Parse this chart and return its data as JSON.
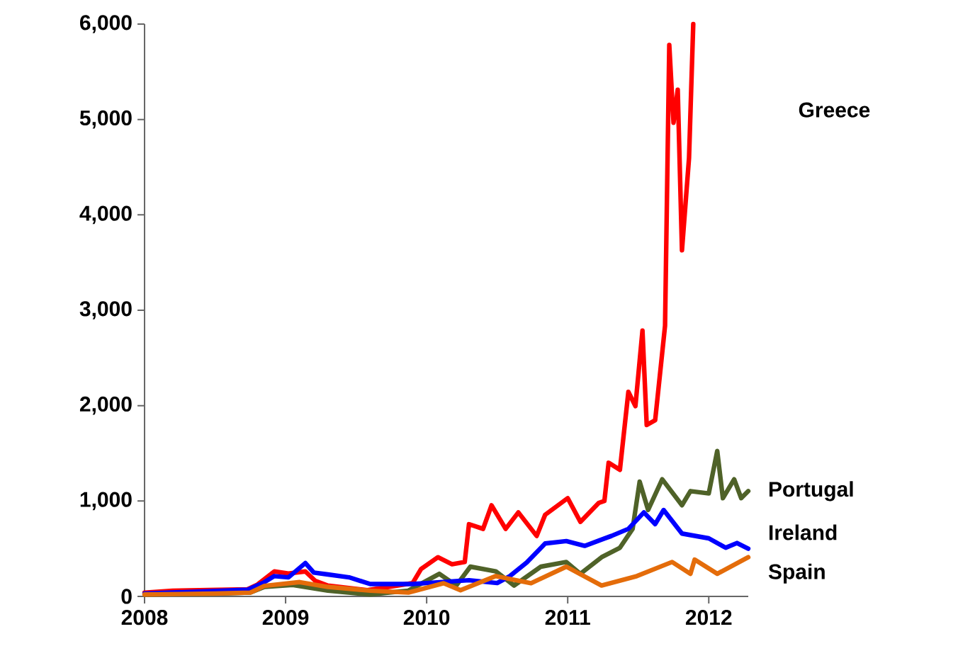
{
  "chart_data": {
    "type": "line",
    "xlim": [
      2008,
      2012.28
    ],
    "xticks": [
      2008,
      2009,
      2010,
      2011,
      2012
    ],
    "ylim": [
      0,
      6000
    ],
    "yticks": [
      0,
      {
        "value": 1000,
        "label": "1,000"
      },
      {
        "value": 2000,
        "label": "2,000"
      },
      {
        "value": 3000,
        "label": "3,000"
      },
      {
        "value": 4000,
        "label": "4,000"
      },
      {
        "value": 5000,
        "label": "5,000"
      },
      {
        "value": 6000,
        "label": "6,000"
      }
    ],
    "series": [
      {
        "name": "Greece",
        "color": "#ff0000",
        "x": [
          2008.0,
          2008.2,
          2008.73,
          2008.8,
          2008.92,
          2009.02,
          2009.14,
          2009.21,
          2009.3,
          2009.58,
          2009.9,
          2009.96,
          2010.08,
          2010.18,
          2010.27,
          2010.3,
          2010.4,
          2010.46,
          2010.56,
          2010.65,
          2010.78,
          2010.84,
          2011.0,
          2011.09,
          2011.22,
          2011.26,
          2011.29,
          2011.37,
          2011.43,
          2011.48,
          2011.53,
          2011.56,
          2011.62,
          2011.69,
          2011.72,
          2011.75,
          2011.78,
          2011.81,
          2011.86,
          2011.89
        ],
        "values": [
          40,
          60,
          75,
          124,
          262,
          240,
          262,
          163,
          114,
          65,
          139,
          287,
          411,
          337,
          361,
          757,
          708,
          955,
          708,
          881,
          634,
          856,
          1030,
          782,
          980,
          1000,
          1401,
          1327,
          2144,
          1995,
          2787,
          1797,
          1847,
          2837,
          5782,
          4965,
          5312,
          3629,
          4594,
          6000
        ]
      },
      {
        "name": "Portugal",
        "color": "#4f6228",
        "x": [
          2008.0,
          2008.5,
          2008.75,
          2008.85,
          2009.05,
          2009.3,
          2009.6,
          2009.87,
          2010.09,
          2010.21,
          2010.31,
          2010.49,
          2010.62,
          2010.81,
          2010.99,
          2011.09,
          2011.24,
          2011.37,
          2011.46,
          2011.51,
          2011.57,
          2011.67,
          2011.81,
          2011.87,
          2012.0,
          2012.06,
          2012.1,
          2012.18,
          2012.23,
          2012.28
        ],
        "values": [
          20,
          30,
          40,
          100,
          120,
          60,
          20,
          60,
          237,
          114,
          312,
          263,
          114,
          312,
          361,
          237,
          411,
          510,
          708,
          1203,
          906,
          1228,
          956,
          1104,
          1080,
          1525,
          1030,
          1228,
          1030,
          1104
        ]
      },
      {
        "name": "Ireland",
        "color": "#0000ff",
        "x": [
          2008.0,
          2008.73,
          2008.85,
          2008.92,
          2009.02,
          2009.1,
          2009.14,
          2009.2,
          2009.3,
          2009.45,
          2009.6,
          2009.9,
          2010.0,
          2010.3,
          2010.5,
          2010.59,
          2010.71,
          2010.84,
          2010.99,
          2011.12,
          2011.31,
          2011.43,
          2011.54,
          2011.62,
          2011.68,
          2011.81,
          2012.0,
          2012.12,
          2012.2,
          2012.28
        ],
        "values": [
          30,
          70,
          150,
          213,
          200,
          300,
          350,
          250,
          230,
          200,
          130,
          130,
          140,
          170,
          140,
          213,
          357,
          555,
          580,
          530,
          634,
          708,
          881,
          758,
          906,
          659,
          609,
          510,
          560,
          500
        ]
      },
      {
        "name": "Spain",
        "color": "#e46c0a",
        "x": [
          2008.0,
          2008.5,
          2008.75,
          2008.85,
          2009.1,
          2009.3,
          2009.6,
          2009.87,
          2010.12,
          2010.24,
          2010.49,
          2010.74,
          2010.99,
          2011.24,
          2011.49,
          2011.74,
          2011.87,
          2011.9,
          2012.06,
          2012.28
        ],
        "values": [
          20,
          30,
          40,
          110,
          150,
          100,
          60,
          40,
          138,
          65,
          213,
          138,
          312,
          114,
          213,
          361,
          237,
          386,
          237,
          411
        ]
      }
    ]
  }
}
